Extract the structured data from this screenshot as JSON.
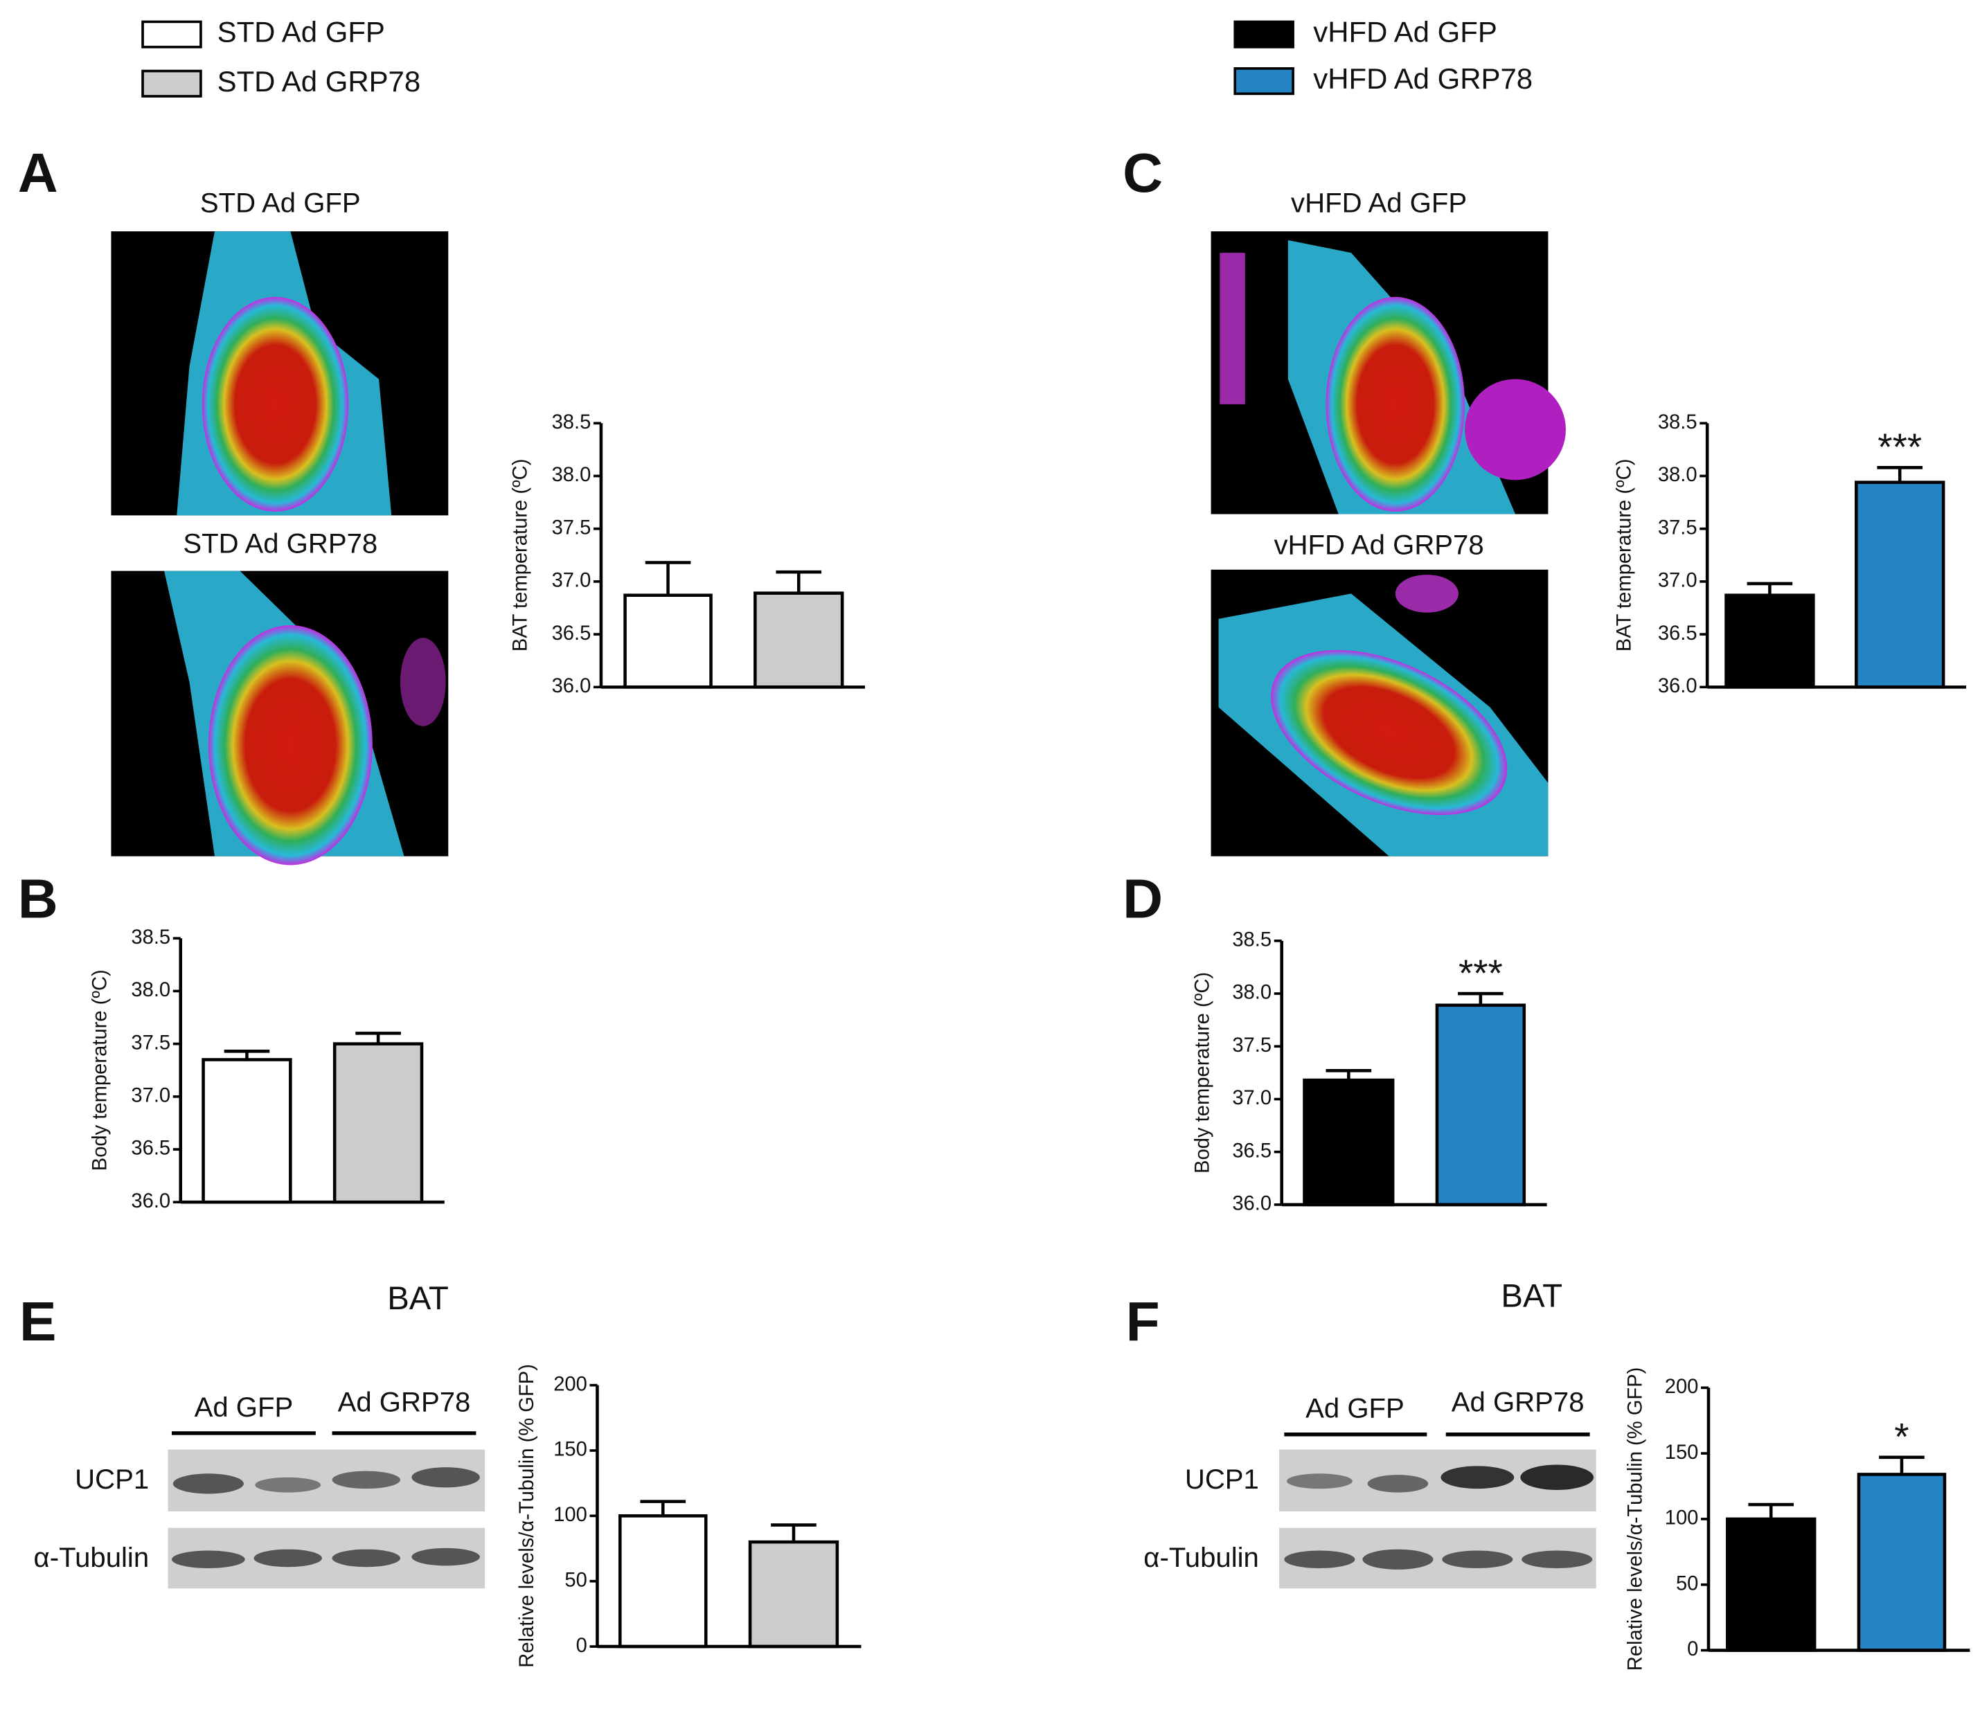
{
  "legend": [
    {
      "label": "STD Ad GFP",
      "color": "#ffffff"
    },
    {
      "label": "STD Ad GRP78",
      "color": "#cccccc"
    },
    {
      "label": "vHFD Ad GFP",
      "color": "#000000"
    },
    {
      "label": "vHFD Ad GRP78",
      "color": "#2584c4"
    }
  ],
  "panels": [
    "A",
    "B",
    "C",
    "D",
    "E",
    "F"
  ],
  "thermal_images": [
    {
      "captions": [
        "STD Ad GFP",
        "STD Ad GRP78"
      ]
    },
    {
      "captions": [
        "vHFD Ad GFP",
        "vHFD Ad GRP78"
      ]
    }
  ],
  "blots": [
    {
      "title": "BAT",
      "groups": [
        "Ad GFP",
        "Ad GRP78"
      ],
      "rows": [
        "UCP1",
        "α-Tubulin"
      ]
    },
    {
      "title": "BAT",
      "groups": [
        "Ad GFP",
        "Ad GRP78"
      ],
      "rows": [
        "UCP1",
        "α-Tubulin"
      ]
    }
  ],
  "chart_data": [
    {
      "type": "bar",
      "ylabel": "BAT temperature (ºC)",
      "values": [
        36.87,
        36.89
      ],
      "errors": [
        0.31,
        0.2
      ],
      "colors": [
        "#ffffff",
        "#cccccc"
      ],
      "ylim": [
        36,
        38.5
      ],
      "yticks": [
        {
          "value": 36,
          "label": "36.0"
        },
        36.5,
        {
          "value": 37,
          "label": "37.0"
        },
        37.5,
        {
          "value": 38,
          "label": "38.0"
        },
        38.5
      ]
    },
    {
      "type": "bar",
      "ylabel": "Body temperature (ºC)",
      "values": [
        37.35,
        37.5
      ],
      "errors": [
        0.08,
        0.1
      ],
      "colors": [
        "#ffffff",
        "#cccccc"
      ],
      "ylim": [
        36,
        38.5
      ],
      "yticks": [
        {
          "value": 36,
          "label": "36.0"
        },
        36.5,
        {
          "value": 37,
          "label": "37.0"
        },
        37.5,
        {
          "value": 38,
          "label": "38.0"
        },
        38.5
      ]
    },
    {
      "type": "bar",
      "ylabel": "BAT temperature (ºC)",
      "values": [
        36.87,
        37.94
      ],
      "errors": [
        0.11,
        0.14
      ],
      "colors": [
        "#000000",
        "#2584c4"
      ],
      "significance": [
        null,
        "***"
      ],
      "ylim": [
        36,
        38.5
      ],
      "yticks": [
        {
          "value": 36,
          "label": "36.0"
        },
        36.5,
        {
          "value": 37,
          "label": "37.0"
        },
        37.5,
        {
          "value": 38,
          "label": "38.0"
        },
        38.5
      ]
    },
    {
      "type": "bar",
      "ylabel": "Body temperature (ºC)",
      "values": [
        37.18,
        37.89
      ],
      "errors": [
        0.09,
        0.11
      ],
      "colors": [
        "#000000",
        "#2584c4"
      ],
      "significance": [
        null,
        "***"
      ],
      "ylim": [
        36,
        38.5
      ],
      "yticks": [
        {
          "value": 36,
          "label": "36.0"
        },
        36.5,
        {
          "value": 37,
          "label": "37.0"
        },
        37.5,
        {
          "value": 38,
          "label": "38.0"
        },
        38.5
      ]
    },
    {
      "type": "bar",
      "ylabel": "Relative levels/α-Tubulin (% GFP)",
      "values": [
        100,
        80
      ],
      "errors": [
        11,
        13
      ],
      "colors": [
        "#ffffff",
        "#cccccc"
      ],
      "ylim": [
        0,
        200
      ],
      "yticks": [
        0,
        50,
        100,
        150,
        200
      ]
    },
    {
      "type": "bar",
      "ylabel": "Relative levels/α-Tubulin (% GFP)",
      "values": [
        100,
        134
      ],
      "errors": [
        11,
        13
      ],
      "colors": [
        "#000000",
        "#2584c4"
      ],
      "significance": [
        null,
        "*"
      ],
      "ylim": [
        0,
        200
      ],
      "yticks": [
        0,
        50,
        100,
        150,
        200
      ]
    }
  ]
}
